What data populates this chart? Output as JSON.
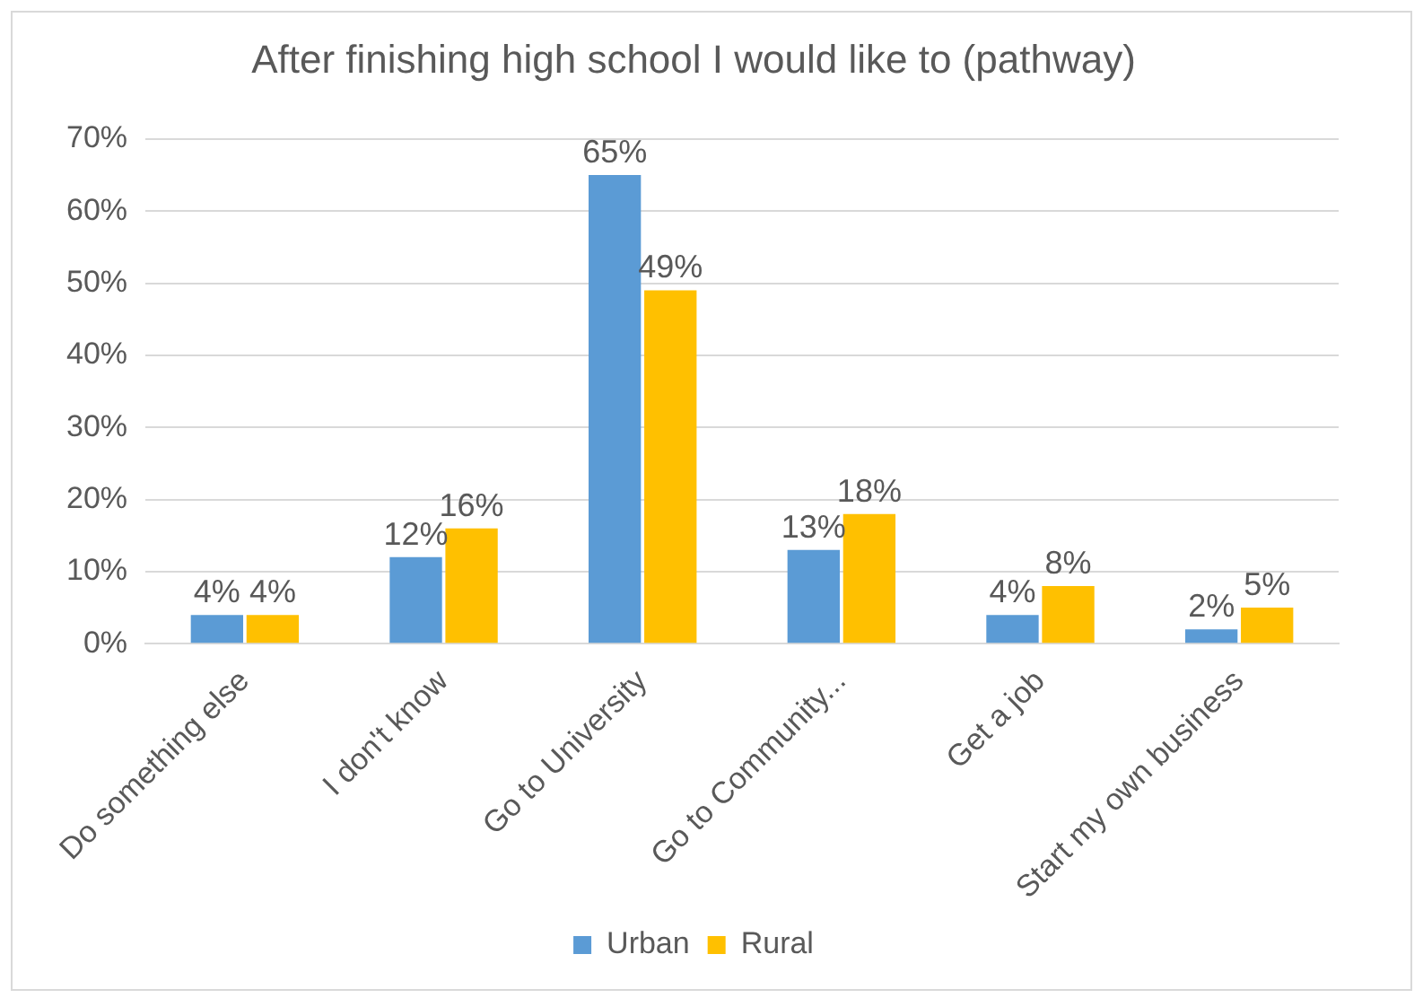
{
  "chart_data": {
    "type": "bar",
    "title": "After finishing high school I would like to (pathway)",
    "categories": [
      "Do something else",
      "I don't know",
      "Go to University",
      "Go to Community...",
      "Get a job",
      "Start my own business"
    ],
    "series": [
      {
        "name": "Urban",
        "color": "#5b9bd5",
        "values": [
          4,
          12,
          65,
          13,
          4,
          2
        ],
        "value_labels": [
          "4%",
          "12%",
          "65%",
          "13%",
          "4%",
          "2%"
        ]
      },
      {
        "name": "Rural",
        "color": "#ffc000",
        "values": [
          4,
          16,
          49,
          18,
          8,
          5
        ],
        "value_labels": [
          "4%",
          "16%",
          "49%",
          "18%",
          "8%",
          "5%"
        ]
      }
    ],
    "ylim": [
      0,
      70
    ],
    "yticks": [
      {
        "value": 0,
        "label": "0%"
      },
      {
        "value": 10,
        "label": "10%"
      },
      {
        "value": 20,
        "label": "20%"
      },
      {
        "value": 30,
        "label": "30%"
      },
      {
        "value": 40,
        "label": "40%"
      },
      {
        "value": 50,
        "label": "50%"
      },
      {
        "value": 60,
        "label": "60%"
      },
      {
        "value": 70,
        "label": "70%"
      }
    ],
    "grid": "y",
    "legend": "bottom"
  }
}
